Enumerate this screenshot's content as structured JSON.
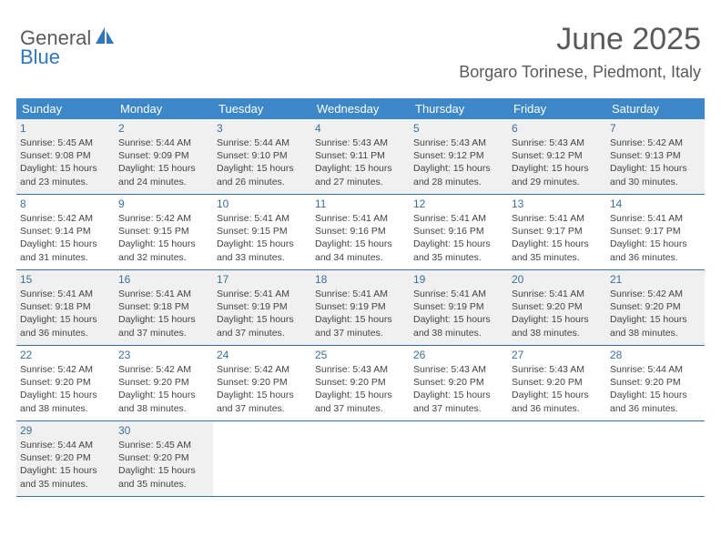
{
  "logo": {
    "word1": "General",
    "word2": "Blue"
  },
  "header": {
    "title": "June 2025",
    "location": "Borgaro Torinese, Piedmont, Italy"
  },
  "colors": {
    "accent": "#3b87c8",
    "text": "#5a5a5a",
    "daynum": "#3b6fa0",
    "shade": "#f0f0f0"
  },
  "dayNames": [
    "Sunday",
    "Monday",
    "Tuesday",
    "Wednesday",
    "Thursday",
    "Friday",
    "Saturday"
  ],
  "weeks": [
    {
      "shaded": true,
      "days": [
        {
          "n": "1",
          "sr": "5:45 AM",
          "ss": "9:08 PM",
          "dl": "15 hours and 23 minutes."
        },
        {
          "n": "2",
          "sr": "5:44 AM",
          "ss": "9:09 PM",
          "dl": "15 hours and 24 minutes."
        },
        {
          "n": "3",
          "sr": "5:44 AM",
          "ss": "9:10 PM",
          "dl": "15 hours and 26 minutes."
        },
        {
          "n": "4",
          "sr": "5:43 AM",
          "ss": "9:11 PM",
          "dl": "15 hours and 27 minutes."
        },
        {
          "n": "5",
          "sr": "5:43 AM",
          "ss": "9:12 PM",
          "dl": "15 hours and 28 minutes."
        },
        {
          "n": "6",
          "sr": "5:43 AM",
          "ss": "9:12 PM",
          "dl": "15 hours and 29 minutes."
        },
        {
          "n": "7",
          "sr": "5:42 AM",
          "ss": "9:13 PM",
          "dl": "15 hours and 30 minutes."
        }
      ]
    },
    {
      "shaded": false,
      "days": [
        {
          "n": "8",
          "sr": "5:42 AM",
          "ss": "9:14 PM",
          "dl": "15 hours and 31 minutes."
        },
        {
          "n": "9",
          "sr": "5:42 AM",
          "ss": "9:15 PM",
          "dl": "15 hours and 32 minutes."
        },
        {
          "n": "10",
          "sr": "5:41 AM",
          "ss": "9:15 PM",
          "dl": "15 hours and 33 minutes."
        },
        {
          "n": "11",
          "sr": "5:41 AM",
          "ss": "9:16 PM",
          "dl": "15 hours and 34 minutes."
        },
        {
          "n": "12",
          "sr": "5:41 AM",
          "ss": "9:16 PM",
          "dl": "15 hours and 35 minutes."
        },
        {
          "n": "13",
          "sr": "5:41 AM",
          "ss": "9:17 PM",
          "dl": "15 hours and 35 minutes."
        },
        {
          "n": "14",
          "sr": "5:41 AM",
          "ss": "9:17 PM",
          "dl": "15 hours and 36 minutes."
        }
      ]
    },
    {
      "shaded": true,
      "days": [
        {
          "n": "15",
          "sr": "5:41 AM",
          "ss": "9:18 PM",
          "dl": "15 hours and 36 minutes."
        },
        {
          "n": "16",
          "sr": "5:41 AM",
          "ss": "9:18 PM",
          "dl": "15 hours and 37 minutes."
        },
        {
          "n": "17",
          "sr": "5:41 AM",
          "ss": "9:19 PM",
          "dl": "15 hours and 37 minutes."
        },
        {
          "n": "18",
          "sr": "5:41 AM",
          "ss": "9:19 PM",
          "dl": "15 hours and 37 minutes."
        },
        {
          "n": "19",
          "sr": "5:41 AM",
          "ss": "9:19 PM",
          "dl": "15 hours and 38 minutes."
        },
        {
          "n": "20",
          "sr": "5:41 AM",
          "ss": "9:20 PM",
          "dl": "15 hours and 38 minutes."
        },
        {
          "n": "21",
          "sr": "5:42 AM",
          "ss": "9:20 PM",
          "dl": "15 hours and 38 minutes."
        }
      ]
    },
    {
      "shaded": false,
      "days": [
        {
          "n": "22",
          "sr": "5:42 AM",
          "ss": "9:20 PM",
          "dl": "15 hours and 38 minutes."
        },
        {
          "n": "23",
          "sr": "5:42 AM",
          "ss": "9:20 PM",
          "dl": "15 hours and 38 minutes."
        },
        {
          "n": "24",
          "sr": "5:42 AM",
          "ss": "9:20 PM",
          "dl": "15 hours and 37 minutes."
        },
        {
          "n": "25",
          "sr": "5:43 AM",
          "ss": "9:20 PM",
          "dl": "15 hours and 37 minutes."
        },
        {
          "n": "26",
          "sr": "5:43 AM",
          "ss": "9:20 PM",
          "dl": "15 hours and 37 minutes."
        },
        {
          "n": "27",
          "sr": "5:43 AM",
          "ss": "9:20 PM",
          "dl": "15 hours and 36 minutes."
        },
        {
          "n": "28",
          "sr": "5:44 AM",
          "ss": "9:20 PM",
          "dl": "15 hours and 36 minutes."
        }
      ]
    },
    {
      "shaded": true,
      "days": [
        {
          "n": "29",
          "sr": "5:44 AM",
          "ss": "9:20 PM",
          "dl": "15 hours and 35 minutes."
        },
        {
          "n": "30",
          "sr": "5:45 AM",
          "ss": "9:20 PM",
          "dl": "15 hours and 35 minutes."
        },
        {
          "empty": true
        },
        {
          "empty": true
        },
        {
          "empty": true
        },
        {
          "empty": true
        },
        {
          "empty": true
        }
      ]
    }
  ],
  "labels": {
    "sunrise": "Sunrise:",
    "sunset": "Sunset:",
    "daylight": "Daylight:"
  }
}
